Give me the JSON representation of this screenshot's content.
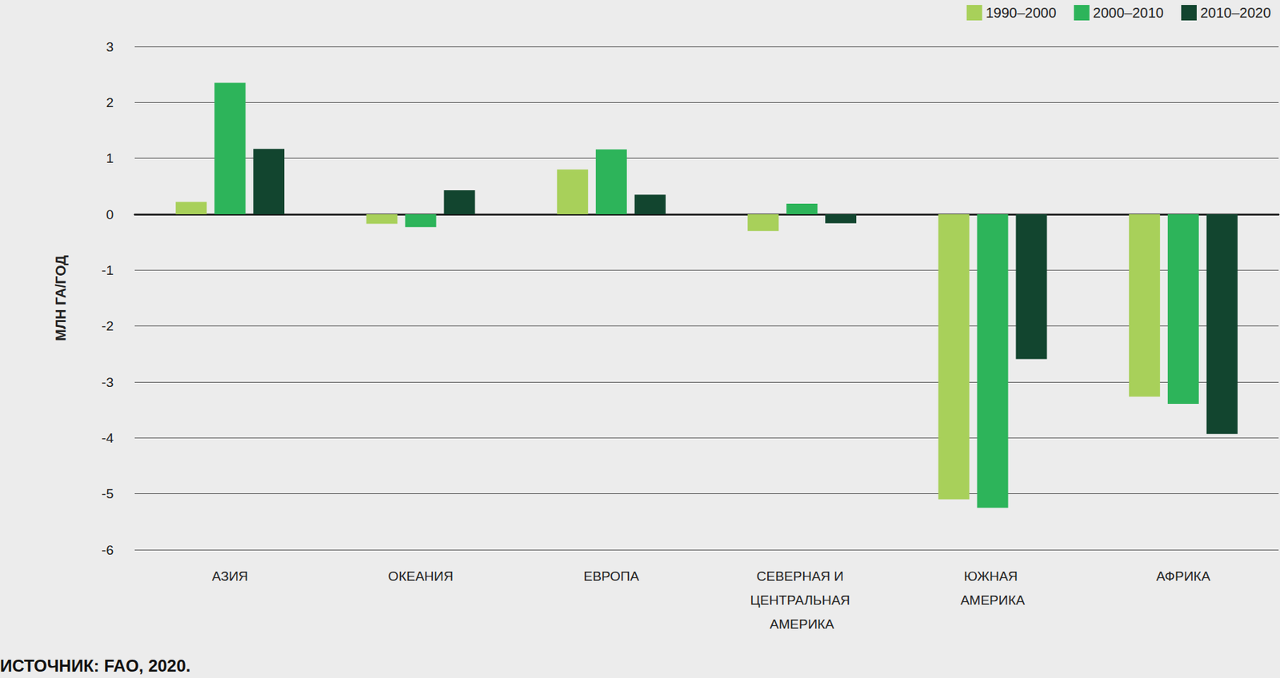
{
  "chart_data": {
    "type": "bar",
    "y_label": "МЛН ГА/ГОД",
    "source": "ИСТОЧНИК: FAO, 2020.",
    "categories": [
      "АЗИЯ",
      "ОКЕАНИЯ",
      "ЕВРОПА",
      "СЕВЕРНАЯ И ЦЕНТРАЛЬНАЯ АМЕРИКА",
      "ЮЖНАЯ АМЕРИКА",
      "АФРИКА"
    ],
    "series": [
      {
        "name": "1990–2000",
        "color": "#a8d05a",
        "values": [
          0.22,
          -0.17,
          0.8,
          -0.3,
          -5.1,
          -3.26
        ]
      },
      {
        "name": "2000–2010",
        "color": "#2db45a",
        "values": [
          2.35,
          -0.23,
          1.16,
          0.19,
          -5.25,
          -3.39
        ]
      },
      {
        "name": "2010–2020",
        "color": "#12452f",
        "values": [
          1.17,
          0.43,
          0.35,
          -0.16,
          -2.59,
          -3.93
        ]
      }
    ],
    "ylim": [
      -6,
      3
    ],
    "yticks": [
      -6,
      -5,
      -4,
      -3,
      -2,
      -1,
      0,
      1,
      2,
      3
    ],
    "grid": true,
    "legend": "top-right"
  }
}
